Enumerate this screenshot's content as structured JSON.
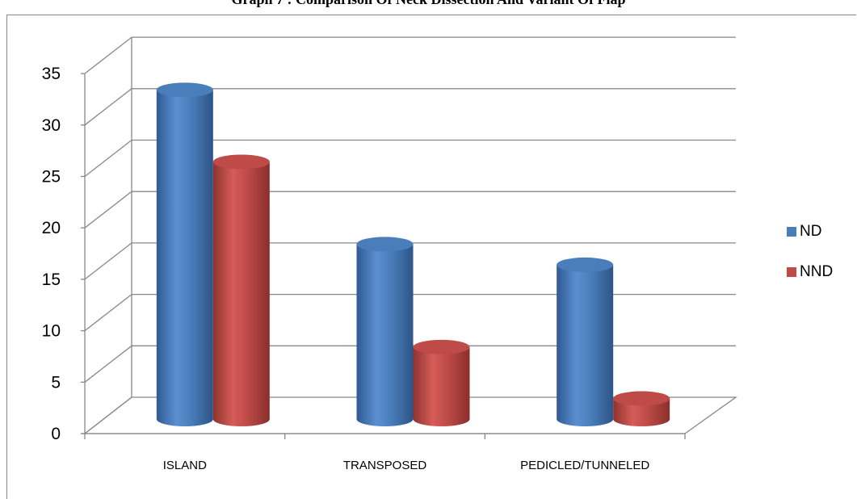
{
  "chart_data": {
    "type": "bar",
    "title": "Graph 7 : Comparison Of Neck Dissection And Variant Of Flap",
    "categories": [
      "ISLAND",
      "TRANSPOSED",
      "PEDICLED/TUNNELED"
    ],
    "series": [
      {
        "name": "ND",
        "values": [
          32,
          17,
          15
        ],
        "color": "#4a7ebb"
      },
      {
        "name": "NND",
        "values": [
          25,
          7,
          2
        ],
        "color": "#be4b48"
      }
    ],
    "ylim": [
      0,
      35
    ],
    "yticks": [
      "0",
      "5",
      "10",
      "15",
      "20",
      "25",
      "30",
      "35"
    ],
    "grid": true,
    "legend_position": "right",
    "style": "3d-cylinder"
  }
}
